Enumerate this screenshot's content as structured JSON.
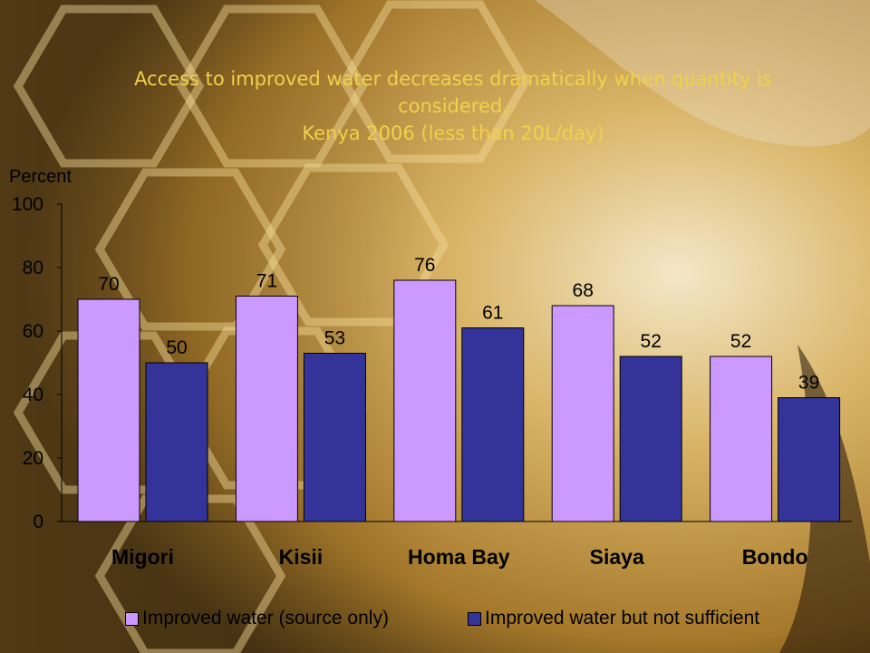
{
  "title_lines": [
    "Access to improved water decreases dramatically when quantity is",
    "considered,",
    "Kenya 2006 (less than 20L/day)"
  ],
  "colors": {
    "series1": "#cc99ff",
    "series2": "#333399",
    "title": "#f2d14a"
  },
  "chart_data": {
    "type": "bar",
    "ylabel": "Percent",
    "ylim": [
      0,
      100
    ],
    "yticks": [
      0,
      20,
      40,
      60,
      80,
      100
    ],
    "categories": [
      "Migori",
      "Kisii",
      "Homa Bay",
      "Siaya",
      "Bondo"
    ],
    "series": [
      {
        "name": "Improved water (source only)",
        "values": [
          70,
          71,
          76,
          68,
          52
        ]
      },
      {
        "name": "Improved water but not sufficient",
        "values": [
          50,
          53,
          61,
          52,
          39
        ]
      }
    ],
    "legend": "bottom",
    "grid": false
  }
}
